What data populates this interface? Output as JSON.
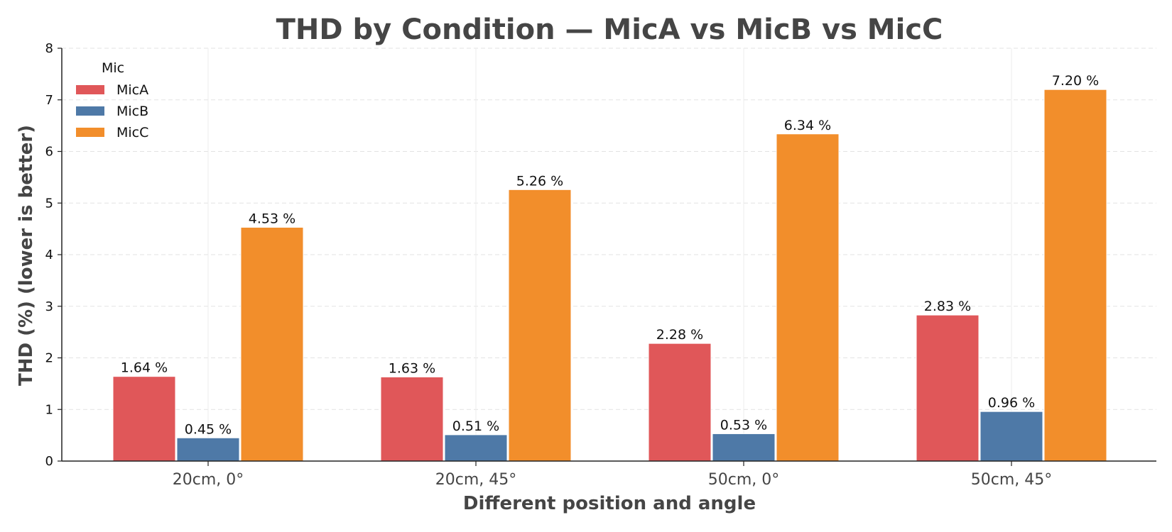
{
  "chart_data": {
    "type": "bar",
    "title": "THD by Condition — MicA vs MicB vs MicC",
    "xlabel": "Different position and angle",
    "ylabel": "THD (%)  (lower is better)",
    "categories": [
      "20cm, 0°",
      "20cm, 45°",
      "50cm, 0°",
      "50cm, 45°"
    ],
    "series": [
      {
        "name": "MicA",
        "color": "#e05759",
        "values": [
          1.64,
          1.63,
          2.28,
          2.83
        ],
        "labels": [
          "1.64 %",
          "1.63 %",
          "2.28 %",
          "2.83 %"
        ]
      },
      {
        "name": "MicB",
        "color": "#4e79a7",
        "values": [
          0.45,
          0.51,
          0.53,
          0.96
        ],
        "labels": [
          "0.45 %",
          "0.51 %",
          "0.53 %",
          "0.96 %"
        ]
      },
      {
        "name": "MicC",
        "color": "#f28e2b",
        "values": [
          4.53,
          5.26,
          6.34,
          7.2
        ],
        "labels": [
          "4.53 %",
          "5.26 %",
          "6.34 %",
          "7.20 %"
        ]
      }
    ],
    "ylim": [
      0,
      8
    ],
    "yticks": [
      "0",
      "1",
      "2",
      "3",
      "4",
      "5",
      "6",
      "7",
      "8"
    ],
    "grid": true,
    "legend": {
      "title": "Mic",
      "placement": "top-left"
    }
  }
}
